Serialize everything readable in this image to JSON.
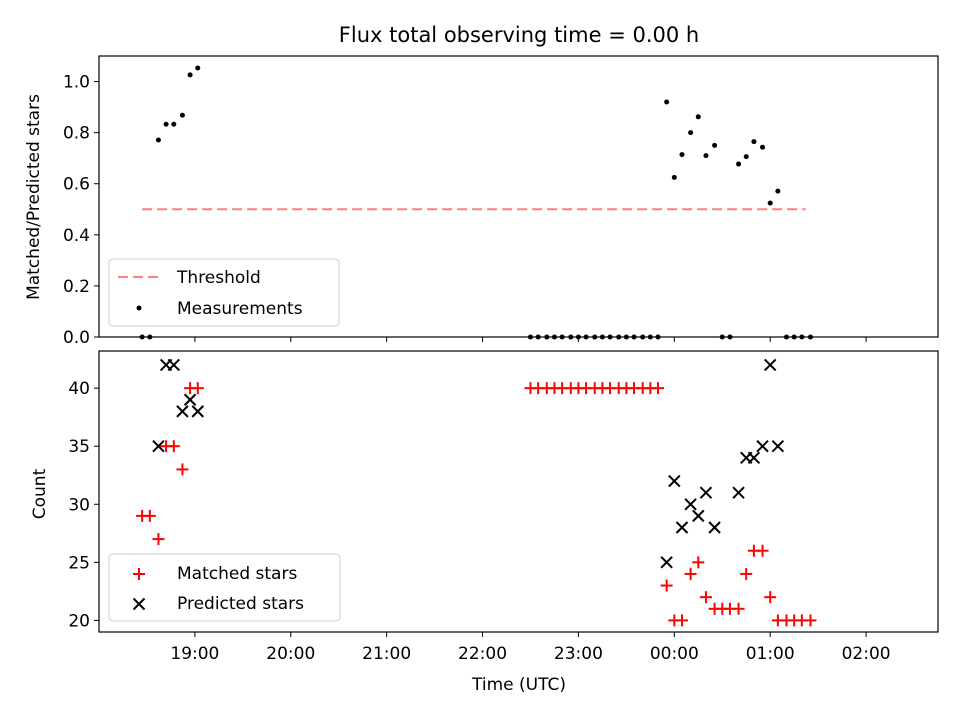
{
  "title": "Flux total observing time = 0.00 h",
  "colors": {
    "threshold": "#ff7f7f",
    "measurement": "#000000",
    "matched": "#ff0000",
    "predicted": "#000000"
  },
  "chart_data": [
    {
      "type": "scatter",
      "ylabel": "Matched/Predicted stars",
      "ylim": [
        0,
        1.1
      ],
      "yticks": [
        0.0,
        0.2,
        0.4,
        0.6,
        0.8,
        1.0
      ],
      "ytick_labels": [
        "0.0",
        "0.2",
        "0.4",
        "0.6",
        "0.8",
        "1.0"
      ],
      "xlim": [
        -5.0,
        3.75
      ],
      "legend": {
        "placement": "lower-left",
        "threshold_label": "Threshold",
        "measurements_label": "Measurements"
      },
      "threshold": {
        "value": 0.5,
        "x_start": -4.55,
        "x_end": 2.37
      },
      "series": [
        {
          "name": "Measurements",
          "x": [
            -4.55,
            -4.47,
            -4.38,
            -4.3,
            -4.22,
            -4.13,
            -4.05,
            -3.97,
            -0.5,
            -0.42,
            -0.33,
            -0.25,
            -0.17,
            -0.08,
            0.0,
            0.08,
            0.17,
            0.25,
            0.33,
            0.42,
            0.5,
            0.58,
            0.67,
            0.75,
            0.83,
            0.92,
            1.0,
            1.08,
            1.17,
            1.25,
            1.33,
            1.42,
            1.5,
            1.58,
            1.67,
            1.75,
            1.83,
            1.92,
            2.0,
            2.08,
            2.17,
            2.25,
            2.33,
            2.42
          ],
          "y": [
            0.0,
            0.0,
            0.771,
            0.833,
            0.833,
            0.868,
            1.026,
            1.053,
            0.0,
            0.0,
            0.0,
            0.0,
            0.0,
            0.0,
            0.0,
            0.0,
            0.0,
            0.0,
            0.0,
            0.0,
            0.0,
            0.0,
            0.0,
            0.0,
            0.0,
            0.92,
            0.625,
            0.714,
            0.8,
            0.862,
            0.71,
            0.75,
            0.0,
            0.0,
            0.677,
            0.706,
            0.765,
            0.743,
            0.524,
            0.571,
            0.0,
            0.0,
            0.0,
            0.0
          ]
        }
      ]
    },
    {
      "type": "scatter",
      "ylabel": "Count",
      "xlabel": "Time (UTC)",
      "ylim": [
        19.0,
        43.2
      ],
      "yticks": [
        20,
        25,
        30,
        35,
        40
      ],
      "ytick_labels": [
        "20",
        "25",
        "30",
        "35",
        "40"
      ],
      "xlim": [
        -5.0,
        3.75
      ],
      "xticks": [
        -4.0,
        -3.0,
        -2.0,
        -1.0,
        0.0,
        1.0,
        2.0,
        3.0
      ],
      "xtick_labels": [
        "19:00",
        "20:00",
        "21:00",
        "22:00",
        "23:00",
        "00:00",
        "01:00",
        "02:00"
      ],
      "legend": {
        "placement": "lower-left",
        "matched_label": "Matched stars",
        "predicted_label": "Predicted stars"
      },
      "series": [
        {
          "name": "Matched stars",
          "x": [
            -4.55,
            -4.47,
            -4.38,
            -4.3,
            -4.22,
            -4.13,
            -4.05,
            -3.97,
            -0.5,
            -0.42,
            -0.33,
            -0.25,
            -0.17,
            -0.08,
            0.0,
            0.08,
            0.17,
            0.25,
            0.33,
            0.42,
            0.5,
            0.58,
            0.67,
            0.75,
            0.83,
            0.92,
            1.0,
            1.08,
            1.17,
            1.25,
            1.33,
            1.42,
            1.5,
            1.58,
            1.67,
            1.75,
            1.83,
            1.92,
            2.0,
            2.08,
            2.17,
            2.25,
            2.33,
            2.42
          ],
          "y": [
            29,
            29,
            27,
            35,
            35,
            33,
            40,
            40,
            40,
            40,
            40,
            40,
            40,
            40,
            40,
            40,
            40,
            40,
            40,
            40,
            40,
            40,
            40,
            40,
            40,
            23,
            20,
            20,
            24,
            25,
            22,
            21,
            21,
            21,
            21,
            24,
            26,
            26,
            22,
            20,
            20,
            20,
            20,
            20
          ]
        },
        {
          "name": "Predicted stars",
          "x": [
            -4.38,
            -4.3,
            -4.22,
            -4.13,
            -4.05,
            -3.97,
            0.92,
            1.0,
            1.08,
            1.17,
            1.25,
            1.33,
            1.42,
            1.67,
            1.75,
            1.83,
            1.92,
            2.0,
            2.08
          ],
          "y": [
            35,
            42,
            42,
            38,
            39,
            38,
            25,
            32,
            28,
            30,
            29,
            31,
            28,
            31,
            34,
            34,
            35,
            42,
            35
          ]
        }
      ]
    }
  ]
}
